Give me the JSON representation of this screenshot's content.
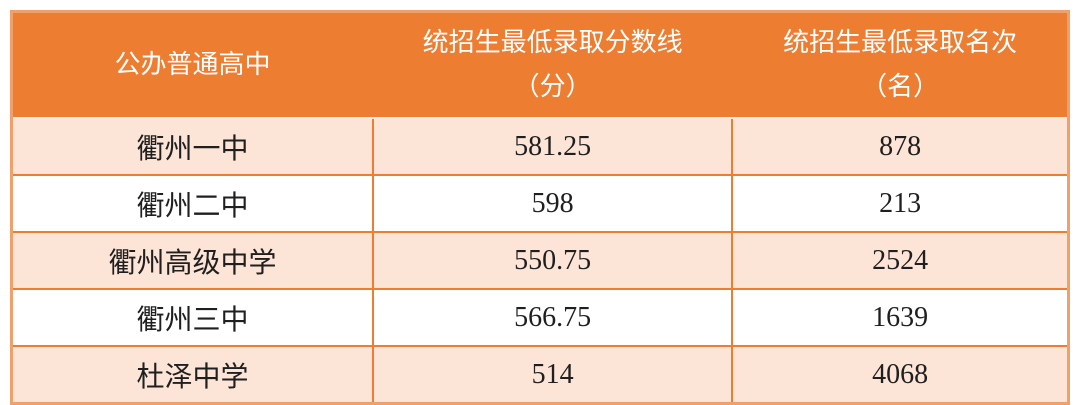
{
  "table": {
    "columns": [
      {
        "label": "公办普通高中"
      },
      {
        "label": "统招生最低录取分数线",
        "unit": "（分）"
      },
      {
        "label": "统招生最低录取名次",
        "unit": "（名）"
      }
    ],
    "rows": [
      {
        "school": "衢州一中",
        "score": "581.25",
        "rank": "878"
      },
      {
        "school": "衢州二中",
        "score": "598",
        "rank": "213"
      },
      {
        "school": "衢州高级中学",
        "score": "550.75",
        "rank": "2524"
      },
      {
        "school": "衢州三中",
        "score": "566.75",
        "rank": "1639"
      },
      {
        "school": "杜泽中学",
        "score": "514",
        "rank": "4068"
      }
    ],
    "colors": {
      "header_bg": "#ed7d31",
      "header_text": "#ffffff",
      "row_alt_bg": "#fce4d6",
      "row_bg": "#ffffff",
      "inner_border": "#ed7d31",
      "outer_border": "#f2a06b",
      "header_divider": "#fdeee3",
      "body_text": "#1f1f1f"
    }
  },
  "chart_data": {
    "type": "table",
    "columns": [
      "公办普通高中",
      "统招生最低录取分数线（分）",
      "统招生最低录取名次（名）"
    ],
    "rows": [
      [
        "衢州一中",
        581.25,
        878
      ],
      [
        "衢州二中",
        598,
        213
      ],
      [
        "衢州高级中学",
        550.75,
        2524
      ],
      [
        "衢州三中",
        566.75,
        1639
      ],
      [
        "杜泽中学",
        514,
        4068
      ]
    ],
    "legend_position": "none",
    "grid": true
  }
}
